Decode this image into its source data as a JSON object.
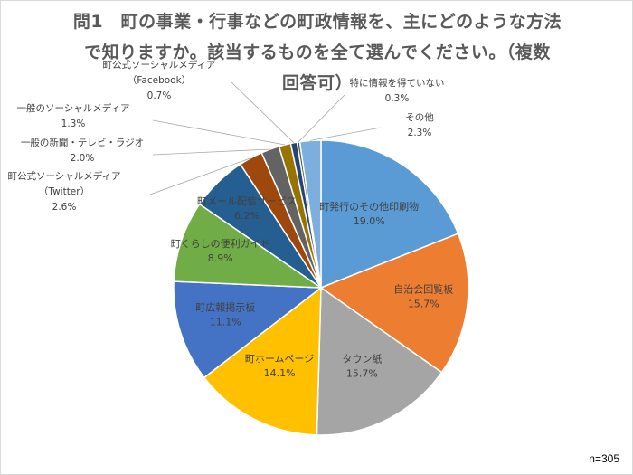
{
  "chart_data": {
    "type": "pie",
    "title_lines": [
      "問1　町の事業・行事などの町政情報を、主にどのような方法",
      "で知りますか。該当するものを全て選んでください。（複数",
      "回答可）"
    ],
    "note": "n=305",
    "slices": [
      {
        "label": "町発行のその他印刷物",
        "pct": "19.0%",
        "value": 19.0,
        "color": "#5b9bd5",
        "label_mode": "inside"
      },
      {
        "label": "自治会回覧板",
        "pct": "15.7%",
        "value": 15.7,
        "color": "#ed7d31",
        "label_mode": "inside"
      },
      {
        "label": "タウン紙",
        "pct": "15.7%",
        "value": 15.7,
        "color": "#a5a5a5",
        "label_mode": "inside"
      },
      {
        "label": "町ホームページ",
        "pct": "14.1%",
        "value": 14.1,
        "color": "#ffc000",
        "label_mode": "inside"
      },
      {
        "label": "町広報掲示板",
        "pct": "11.1%",
        "value": 11.1,
        "color": "#4472c4",
        "label_mode": "inside"
      },
      {
        "label": "町くらしの便利ガイド",
        "pct": "8.9%",
        "value": 8.9,
        "color": "#70ad47",
        "label_mode": "inside"
      },
      {
        "label": "町メール配信サービス",
        "pct": "6.2%",
        "value": 6.2,
        "color": "#255e91",
        "label_mode": "inside"
      },
      {
        "label": "町公式ソーシャルメディア\n（Twitter）",
        "pct": "2.6%",
        "value": 2.6,
        "color": "#9e480e",
        "label_mode": "outside"
      },
      {
        "label": "一般の新聞・テレビ・ラジオ",
        "pct": "2.0%",
        "value": 2.0,
        "color": "#636363",
        "label_mode": "outside"
      },
      {
        "label": "一般のソーシャルメディア",
        "pct": "1.3%",
        "value": 1.3,
        "color": "#997300",
        "label_mode": "outside"
      },
      {
        "label": "町公式ソーシャルメディア\n（Facebook）",
        "pct": "0.7%",
        "value": 0.7,
        "color": "#264478",
        "label_mode": "outside"
      },
      {
        "label": "特に情報を得ていない",
        "pct": "0.3%",
        "value": 0.3,
        "color": "#43682b",
        "label_mode": "outside"
      },
      {
        "label": "その他",
        "pct": "2.3%",
        "value": 2.3,
        "color": "#7cafdd",
        "label_mode": "outside"
      }
    ]
  }
}
